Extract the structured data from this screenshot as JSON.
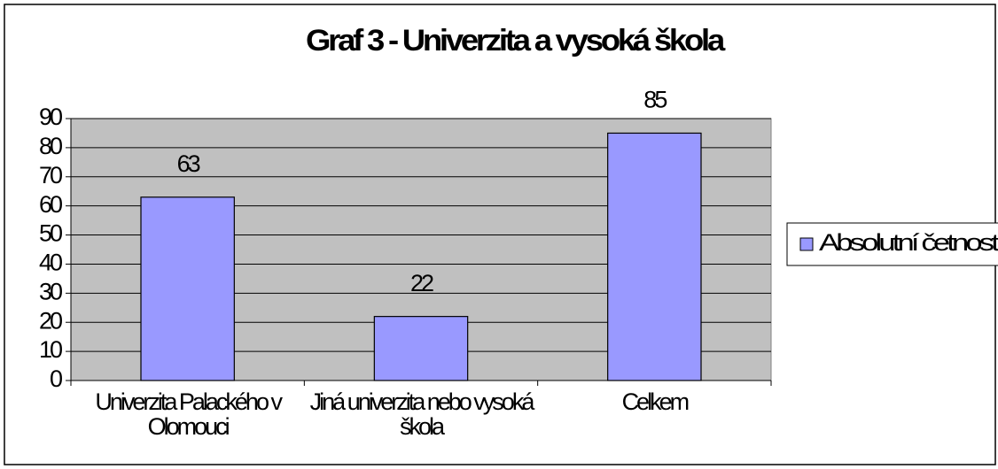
{
  "chart_data": {
    "type": "bar",
    "title": "Graf 3 - Univerzita a vysoká škola",
    "categories": [
      "Univerzita Palackého v Olomouci",
      "Jiná univerzita nebo vysoká škola",
      "Celkem"
    ],
    "series": [
      {
        "name": "Absolutní četnost",
        "color": "#9999ff",
        "values": [
          63,
          22,
          85
        ]
      }
    ],
    "ylim": [
      0,
      90
    ],
    "yticks": [
      0,
      10,
      20,
      30,
      40,
      50,
      60,
      70,
      80,
      90
    ],
    "grid": true,
    "legend": "right"
  }
}
